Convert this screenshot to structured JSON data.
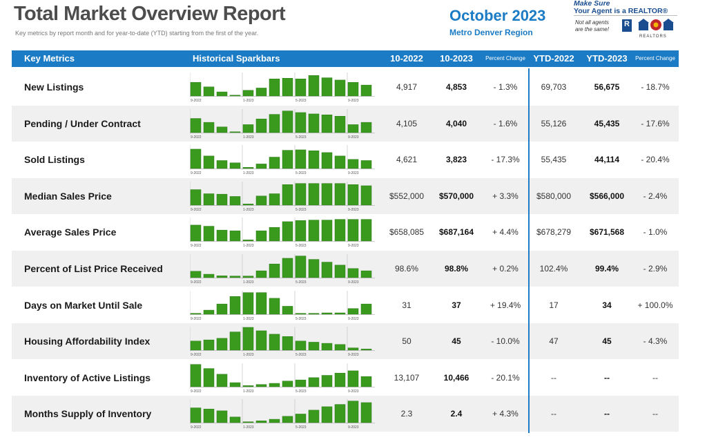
{
  "report": {
    "title": "Total Market Overview Report",
    "subtitle": "Key metrics by report month and for year-to-date (YTD) starting from the first of the year.",
    "month": "October 2023",
    "region": "Metro Denver Region"
  },
  "brand": {
    "line1": "Make Sure",
    "line2": "Your Agent is a REALTOR®",
    "note1": "Not all agents",
    "note2": "are the same!",
    "r_mark": "R",
    "realtors": "REALTORS",
    "colors": {
      "blue": "#1a4d8f",
      "red": "#c0272d",
      "gold": "#f2b705"
    }
  },
  "colors": {
    "header": "#1b7bc4",
    "bar": "#3a9a1e",
    "bar_edge": "#2b7a14",
    "row_shade": "#f0f0f0"
  },
  "columns": {
    "key_metrics": "Key Metrics",
    "sparkbars": "Historical Sparkbars",
    "p1": "10-2022",
    "p2": "10-2023",
    "pct": "Percent Change",
    "ytd1": "YTD-2022",
    "ytd2": "YTD-2023",
    "ytd_pct": "Percent Change"
  },
  "spark_labels": [
    "9-2022",
    "1-2023",
    "5-2023",
    "9-2023"
  ],
  "rows": [
    {
      "metric": "New Listings",
      "p1": "4,917",
      "p2": "4,853",
      "pct": "- 1.3%",
      "ytd1": "69,703",
      "ytd2": "56,675",
      "ytd_pct": "- 18.7%",
      "spark": [
        0.6,
        0.4,
        0.18,
        0.03,
        0.25,
        0.35,
        0.75,
        0.78,
        0.75,
        0.9,
        0.8,
        0.7,
        0.6,
        0.48
      ]
    },
    {
      "metric": "Pending / Under Contract",
      "p1": "4,105",
      "p2": "4,040",
      "pct": "- 1.6%",
      "ytd1": "55,126",
      "ytd2": "45,435",
      "ytd_pct": "- 17.6%",
      "spark": [
        0.62,
        0.45,
        0.25,
        0.03,
        0.35,
        0.6,
        0.8,
        0.95,
        0.88,
        0.82,
        0.78,
        0.72,
        0.35,
        0.45
      ]
    },
    {
      "metric": "Sold Listings",
      "p1": "4,621",
      "p2": "3,823",
      "pct": "- 17.3%",
      "ytd1": "55,435",
      "ytd2": "44,114",
      "ytd_pct": "- 20.4%",
      "spark": [
        0.85,
        0.55,
        0.35,
        0.25,
        0.05,
        0.2,
        0.5,
        0.8,
        0.82,
        0.78,
        0.7,
        0.55,
        0.4,
        0.35
      ]
    },
    {
      "metric": "Median Sales Price",
      "p1": "$552,000",
      "p2": "$570,000",
      "pct": "+ 3.3%",
      "ytd1": "$580,000",
      "ytd2": "$566,000",
      "ytd_pct": "- 2.4%",
      "spark": [
        0.68,
        0.5,
        0.48,
        0.38,
        0.05,
        0.4,
        0.5,
        0.9,
        0.95,
        0.95,
        0.95,
        0.95,
        0.9,
        0.85
      ]
    },
    {
      "metric": "Average Sales Price",
      "p1": "$658,085",
      "p2": "$687,164",
      "pct": "+ 4.4%",
      "ytd1": "$678,279",
      "ytd2": "$671,568",
      "ytd_pct": "- 1.0%",
      "spark": [
        0.7,
        0.65,
        0.48,
        0.45,
        0.05,
        0.45,
        0.6,
        0.85,
        0.9,
        0.92,
        0.92,
        0.95,
        0.95,
        0.95
      ]
    },
    {
      "metric": "Percent of List Price Received",
      "p1": "98.6%",
      "p2": "98.8%",
      "pct": "+ 0.2%",
      "ytd1": "102.4%",
      "ytd2": "99.4%",
      "ytd_pct": "- 2.9%",
      "spark": [
        0.28,
        0.15,
        0.08,
        0.07,
        0.07,
        0.3,
        0.6,
        0.85,
        0.95,
        0.8,
        0.68,
        0.55,
        0.4,
        0.3
      ]
    },
    {
      "metric": "Days on Market Until Sale",
      "p1": "31",
      "p2": "37",
      "pct": "+ 19.4%",
      "ytd1": "17",
      "ytd2": "34",
      "ytd_pct": "+ 100.0%",
      "spark": [
        0.04,
        0.18,
        0.45,
        0.78,
        0.95,
        0.95,
        0.7,
        0.35,
        0.04,
        0.04,
        0.06,
        0.06,
        0.25,
        0.45
      ]
    },
    {
      "metric": "Housing Affordability Index",
      "p1": "50",
      "p2": "45",
      "pct": "- 10.0%",
      "ytd1": "47",
      "ytd2": "45",
      "ytd_pct": "- 4.3%",
      "spark": [
        0.4,
        0.45,
        0.52,
        0.8,
        1.0,
        0.85,
        0.7,
        0.6,
        0.4,
        0.35,
        0.3,
        0.25,
        0.1,
        0.05
      ]
    },
    {
      "metric": "Inventory of Active Listings",
      "p1": "13,107",
      "p2": "10,466",
      "pct": "- 20.1%",
      "ytd1": "--",
      "ytd2": "--",
      "ytd_pct": "--",
      "spark": [
        0.98,
        0.8,
        0.55,
        0.18,
        0.05,
        0.1,
        0.15,
        0.25,
        0.3,
        0.4,
        0.5,
        0.6,
        0.7,
        0.45
      ]
    },
    {
      "metric": "Months Supply of Inventory",
      "p1": "2.3",
      "p2": "2.4",
      "pct": "+ 4.3%",
      "ytd1": "--",
      "ytd2": "--",
      "ytd_pct": "--",
      "spark": [
        0.65,
        0.6,
        0.52,
        0.25,
        0.04,
        0.08,
        0.15,
        0.28,
        0.38,
        0.55,
        0.7,
        0.8,
        0.95,
        0.88
      ]
    }
  ]
}
